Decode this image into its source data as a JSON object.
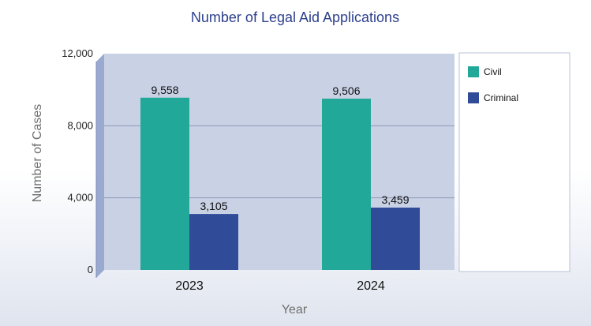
{
  "chart_data": {
    "type": "bar",
    "title": "Number of Legal Aid Applications",
    "xlabel": "Year",
    "ylabel": "Number of Cases",
    "categories": [
      "2023",
      "2024"
    ],
    "series": [
      {
        "name": "Civil",
        "values": [
          9558,
          9506
        ],
        "labels": [
          "9,558",
          "9,506"
        ],
        "color": "#22a898"
      },
      {
        "name": "Criminal",
        "values": [
          3105,
          3459
        ],
        "labels": [
          "3,105",
          "3,459"
        ],
        "color": "#304c98"
      }
    ],
    "ylim": [
      0,
      12000
    ],
    "yticks": [
      0,
      4000,
      8000,
      12000
    ],
    "ytick_labels": [
      "0",
      "4,000",
      "8,000",
      "12,000"
    ],
    "grid": true,
    "legend_position": "right",
    "colors": {
      "title": "#2c3f8c",
      "plot_background": "#c9d1e5",
      "plot_side_wall": "#9aa9cf",
      "axis_label": "#6f6f6f"
    }
  }
}
